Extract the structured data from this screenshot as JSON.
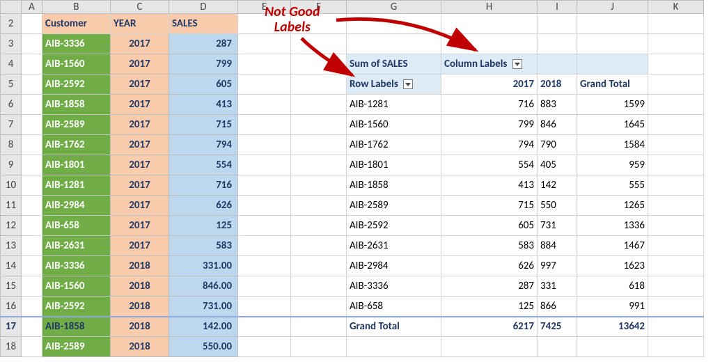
{
  "columns": [
    "A",
    "B",
    "C",
    "D",
    "E",
    "F",
    "G",
    "H",
    "I",
    "J",
    "K"
  ],
  "rowStart": 2,
  "rowEnd": 18,
  "srcHeaders": {
    "b": "Customer",
    "c": "YEAR",
    "d": "SALES"
  },
  "srcRows": [
    {
      "b": "AIB-3336",
      "c": "2017",
      "d": "287"
    },
    {
      "b": "AIB-1560",
      "c": "2017",
      "d": "799"
    },
    {
      "b": "AIB-2592",
      "c": "2017",
      "d": "605"
    },
    {
      "b": "AIB-1858",
      "c": "2017",
      "d": "413"
    },
    {
      "b": "AIB-2589",
      "c": "2017",
      "d": "715"
    },
    {
      "b": "AIB-1762",
      "c": "2017",
      "d": "794"
    },
    {
      "b": "AIB-1801",
      "c": "2017",
      "d": "554"
    },
    {
      "b": "AIB-1281",
      "c": "2017",
      "d": "716"
    },
    {
      "b": "AIB-2984",
      "c": "2017",
      "d": "626"
    },
    {
      "b": "AIB-658",
      "c": "2017",
      "d": "125"
    },
    {
      "b": "AIB-2631",
      "c": "2017",
      "d": "583"
    },
    {
      "b": "AIB-3336",
      "c": "2018",
      "d": "331.00"
    },
    {
      "b": "AIB-1560",
      "c": "2018",
      "d": "846.00"
    },
    {
      "b": "AIB-2592",
      "c": "2018",
      "d": "731.00"
    },
    {
      "b": "AIB-1858",
      "c": "2018",
      "d": "142.00"
    },
    {
      "b": "AIB-2589",
      "c": "2018",
      "d": "550.00"
    }
  ],
  "pivot": {
    "sumOf": "Sum of SALES",
    "colLabels": "Column Labels",
    "rowLabels": "Row Labels",
    "cols": [
      "2017",
      "2018",
      "Grand Total"
    ],
    "rows": [
      {
        "label": "AIB-1281",
        "v": [
          "716",
          "883",
          "1599"
        ]
      },
      {
        "label": "AIB-1560",
        "v": [
          "799",
          "846",
          "1645"
        ]
      },
      {
        "label": "AIB-1762",
        "v": [
          "794",
          "790",
          "1584"
        ]
      },
      {
        "label": "AIB-1801",
        "v": [
          "554",
          "405",
          "959"
        ]
      },
      {
        "label": "AIB-1858",
        "v": [
          "413",
          "142",
          "555"
        ]
      },
      {
        "label": "AIB-2589",
        "v": [
          "715",
          "550",
          "1265"
        ]
      },
      {
        "label": "AIB-2592",
        "v": [
          "605",
          "731",
          "1336"
        ]
      },
      {
        "label": "AIB-2631",
        "v": [
          "583",
          "884",
          "1467"
        ]
      },
      {
        "label": "AIB-2984",
        "v": [
          "626",
          "997",
          "1623"
        ]
      },
      {
        "label": "AIB-3336",
        "v": [
          "287",
          "331",
          "618"
        ]
      },
      {
        "label": "AIB-658",
        "v": [
          "125",
          "866",
          "991"
        ]
      }
    ],
    "grandTotal": {
      "label": "Grand Total",
      "v": [
        "6217",
        "7425",
        "13642"
      ]
    }
  },
  "annotation": {
    "line1": "Not Good",
    "line2": "Labels",
    "color": "#c00000"
  }
}
